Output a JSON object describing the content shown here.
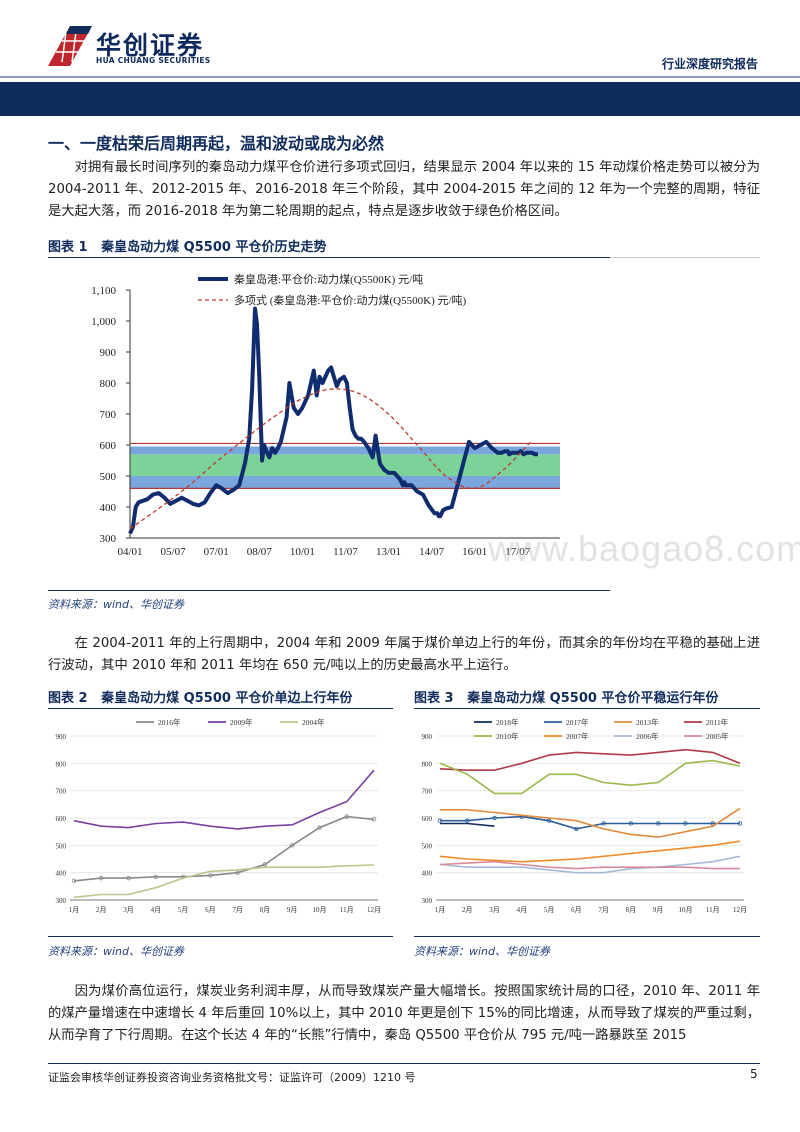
{
  "header": {
    "logo_cn": "华创证券",
    "logo_en": "HUA CHUANG SECURITIES",
    "report_type": "行业深度研究报告"
  },
  "section": {
    "title": "一、一度枯荣后周期再起，温和波动或成为必然"
  },
  "paragraphs": {
    "p1": "对拥有最长时间序列的秦岛动力煤平仓价进行多项式回归，结果显示 2004 年以来的 15 年动煤价格走势可以被分为 2004-2011 年、2012-2015 年、2016-2018 年三个阶段，其中 2004-2015 年之间的 12 年为一个完整的周期，特征是大起大落，而 2016-2018 年为第二轮周期的起点，特点是逐步收敛于绿色价格区间。",
    "p2": "在 2004-2011 年的上行周期中，2004 年和 2009 年属于煤价单边上行的年份，而其余的年份均在平稳的基础上进行波动，其中 2010 年和 2011 年均在 650 元/吨以上的历史最高水平上运行。",
    "p3": "因为煤价高位运行，煤炭业务利润丰厚，从而导致煤炭产量大幅增长。按照国家统计局的口径，2010 年、2011 年的煤产量增速在中速增长 4 年后重回 10%以上，其中 2010 年更是创下 15%的同比增速，从而导致了煤炭的严重过剩，从而孕育了下行周期。在这个长达 4 年的“长熊”行情中，秦岛 Q5500 平仓价从 795 元/吨一路暴跌至 2015"
  },
  "figures": {
    "fig1": {
      "label": "图表 1",
      "title": "秦皇岛动力煤 Q5500 平仓价历史走势",
      "source": "资料来源：wind、华创证券"
    },
    "fig2": {
      "label": "图表 2",
      "title": "秦皇岛动力煤 Q5500 平仓价单边上行年份",
      "source": "资料来源：wind、华创证券"
    },
    "fig3": {
      "label": "图表 3",
      "title": "秦皇岛动力煤 Q5500 平仓价平稳运行年份",
      "source": "资料来源：wind、华创证券"
    }
  },
  "watermark": "www.baogao8.com",
  "footer": {
    "text": "证监会审核华创证券投资咨询业务资格批文号：证监许可（2009）1210 号",
    "page": "5"
  },
  "chart_data": [
    {
      "type": "line",
      "title": "",
      "ylim": [
        300,
        1100
      ],
      "y_ticks": [
        "300",
        "400",
        "500",
        "600",
        "700",
        "800",
        "900",
        "1,000",
        "1,100"
      ],
      "x_ticks": [
        "04/01",
        "05/07",
        "07/01",
        "08/07",
        "10/01",
        "11/07",
        "13/01",
        "14/07",
        "16/01",
        "17/07"
      ],
      "bands": [
        {
          "from": 460,
          "to": 500,
          "color": "#7aa6de"
        },
        {
          "from": 500,
          "to": 570,
          "color": "#7bd39a"
        },
        {
          "from": 570,
          "to": 595,
          "color": "#7aa6de"
        }
      ],
      "ref_lines": [
        {
          "value": 460,
          "color": "#b23a3a"
        },
        {
          "value": 605,
          "color": "#b23a3a"
        }
      ],
      "legend": [
        "秦皇岛港:平仓价:动力煤(Q5500K) 元/吨",
        "多项式 (秦皇岛港:平仓价:动力煤(Q5500K) 元/吨)"
      ],
      "series": [
        {
          "name": "秦皇岛港:平仓价:动力煤(Q5500K) 元/吨",
          "color": "#0f2c6e",
          "x": [
            2004.0,
            2004.1,
            2004.2,
            2004.3,
            2004.45,
            2004.6,
            2004.8,
            2005.0,
            2005.2,
            2005.4,
            2005.6,
            2005.8,
            2006.0,
            2006.2,
            2006.4,
            2006.6,
            2006.8,
            2007.0,
            2007.2,
            2007.4,
            2007.6,
            2007.8,
            2008.0,
            2008.15,
            2008.25,
            2008.35,
            2008.42,
            2008.5,
            2008.55,
            2008.6,
            2008.67,
            2008.75,
            2008.85,
            2008.95,
            2009.05,
            2009.15,
            2009.25,
            2009.35,
            2009.45,
            2009.55,
            2009.7,
            2009.85,
            2010.0,
            2010.2,
            2010.4,
            2010.5,
            2010.55,
            2010.6,
            2010.7,
            2010.9,
            2011.0,
            2011.1,
            2011.2,
            2011.3,
            2011.45,
            2011.55,
            2011.65,
            2011.75,
            2011.85,
            2011.95,
            2012.05,
            2012.15,
            2012.3,
            2012.45,
            2012.55,
            2012.7,
            2012.85,
            2013.0,
            2013.2,
            2013.4,
            2013.5,
            2013.55,
            2013.6,
            2013.7,
            2013.8,
            2014.0,
            2014.2,
            2014.4,
            2014.6,
            2014.7,
            2014.75,
            2014.8,
            2014.9,
            2015.0,
            2015.2,
            2015.4,
            2015.6,
            2015.8,
            2016.0,
            2016.2,
            2016.4,
            2016.6,
            2016.8,
            2016.95,
            2017.05,
            2017.15,
            2017.2,
            2017.3,
            2017.4,
            2017.5,
            2017.6,
            2017.7,
            2017.8,
            2017.9,
            2018.0,
            2018.1,
            2018.2
          ],
          "values": [
            315,
            335,
            400,
            415,
            420,
            425,
            440,
            445,
            430,
            410,
            420,
            430,
            420,
            410,
            405,
            415,
            445,
            470,
            460,
            445,
            455,
            470,
            540,
            620,
            780,
            1040,
            990,
            820,
            680,
            550,
            600,
            580,
            560,
            590,
            575,
            590,
            610,
            650,
            690,
            800,
            720,
            700,
            720,
            760,
            840,
            760,
            790,
            820,
            800,
            840,
            850,
            820,
            790,
            810,
            820,
            800,
            720,
            650,
            630,
            620,
            620,
            610,
            590,
            560,
            630,
            540,
            520,
            510,
            510,
            490,
            470,
            480,
            470,
            470,
            470,
            450,
            440,
            405,
            380,
            380,
            370,
            370,
            390,
            395,
            400,
            470,
            540,
            610,
            590,
            600,
            610,
            590,
            575,
            575,
            580,
            580,
            570,
            575,
            575,
            575,
            580,
            570,
            575,
            575,
            575,
            570,
            570
          ]
        },
        {
          "name": "多项式 (秦皇岛港:平仓价:动力煤(Q5500K) 元/吨)",
          "color": "#c0392b",
          "x": [
            2004,
            2005,
            2006,
            2007,
            2008,
            2009,
            2010,
            2011,
            2012,
            2013,
            2014,
            2015,
            2016,
            2017,
            2018
          ],
          "values": [
            330,
            395,
            465,
            545,
            620,
            690,
            750,
            780,
            765,
            700,
            600,
            500,
            460,
            520,
            615
          ]
        }
      ]
    },
    {
      "type": "line",
      "title": "",
      "ylim": [
        300,
        900
      ],
      "y_ticks": [
        "300",
        "400",
        "500",
        "600",
        "700",
        "800",
        "900"
      ],
      "categories": [
        "1月",
        "2月",
        "3月",
        "4月",
        "5月",
        "6月",
        "7月",
        "8月",
        "9月",
        "10月",
        "11月",
        "12月"
      ],
      "series": [
        {
          "name": "2016年",
          "color": "#8a8a8a",
          "values": [
            370,
            380,
            380,
            385,
            385,
            390,
            400,
            430,
            500,
            565,
            605,
            595
          ]
        },
        {
          "name": "2009年",
          "color": "#7a3fa0",
          "values": [
            590,
            570,
            565,
            580,
            585,
            570,
            560,
            570,
            575,
            620,
            660,
            775
          ]
        },
        {
          "name": "2004年",
          "color": "#b7c88a",
          "values": [
            310,
            320,
            320,
            345,
            380,
            405,
            410,
            420,
            420,
            420,
            425,
            428
          ]
        }
      ]
    },
    {
      "type": "line",
      "title": "",
      "ylim": [
        300,
        900
      ],
      "y_ticks": [
        "300",
        "400",
        "500",
        "600",
        "700",
        "800",
        "900"
      ],
      "categories": [
        "1月",
        "2月",
        "3月",
        "4月",
        "5月",
        "6月",
        "7月",
        "8月",
        "9月",
        "10月",
        "11月",
        "12月"
      ],
      "series": [
        {
          "name": "2018年",
          "color": "#0f2c5c",
          "values": [
            580,
            580,
            570,
            null,
            null,
            null,
            null,
            null,
            null,
            null,
            null,
            null
          ]
        },
        {
          "name": "2017年",
          "color": "#2a5d9a",
          "values": [
            590,
            590,
            600,
            605,
            590,
            560,
            580,
            580,
            580,
            580,
            580,
            580
          ]
        },
        {
          "name": "2013年",
          "color": "#e08a3c",
          "values": [
            630,
            630,
            620,
            610,
            600,
            590,
            560,
            540,
            530,
            550,
            570,
            635
          ]
        },
        {
          "name": "2011年",
          "color": "#b03a48",
          "values": [
            780,
            775,
            775,
            800,
            830,
            840,
            835,
            830,
            840,
            850,
            840,
            800
          ]
        },
        {
          "name": "2010年",
          "color": "#9bb84a",
          "values": [
            800,
            760,
            690,
            690,
            760,
            760,
            730,
            720,
            730,
            800,
            810,
            790
          ]
        },
        {
          "name": "2007年",
          "color": "#f08a2a",
          "values": [
            460,
            450,
            445,
            440,
            445,
            450,
            460,
            470,
            480,
            490,
            500,
            515
          ]
        },
        {
          "name": "2006年",
          "color": "#a8b8d8",
          "values": [
            430,
            420,
            420,
            420,
            410,
            400,
            400,
            415,
            420,
            430,
            440,
            460
          ]
        },
        {
          "name": "2005年",
          "color": "#d88a9a",
          "values": [
            430,
            435,
            440,
            430,
            420,
            415,
            420,
            420,
            420,
            420,
            415,
            415
          ]
        }
      ]
    }
  ]
}
